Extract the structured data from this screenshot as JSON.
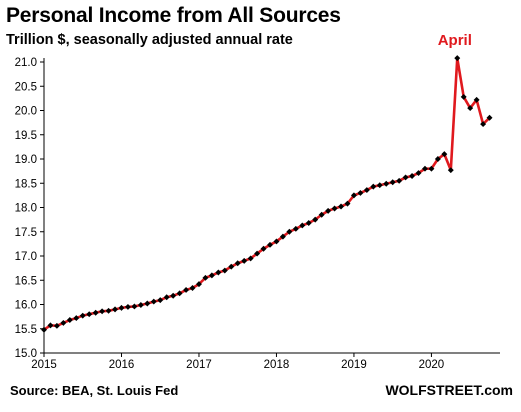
{
  "chart_data": {
    "type": "line",
    "title": "Personal Income from All Sources",
    "subtitle": "Trillion $, seasonally adjusted annual rate",
    "xlabel": "",
    "ylabel": "",
    "ylim": [
      15.0,
      21.0
    ],
    "xlim": [
      "2015-01",
      "2020-11"
    ],
    "grid": false,
    "legend": "none",
    "y_ticks": [
      "15.0",
      "15.5",
      "16.0",
      "16.5",
      "17.0",
      "17.5",
      "18.0",
      "18.5",
      "19.0",
      "19.5",
      "20.0",
      "20.5",
      "21.0"
    ],
    "x_ticks": [
      "2015",
      "2016",
      "2017",
      "2018",
      "2019",
      "2020"
    ],
    "annotations": [
      {
        "text": "April",
        "x": "2020-04",
        "y": 21.08
      }
    ],
    "series": [
      {
        "color": "#e0191e",
        "marker_color": "#000000",
        "x": [
          "2015-01",
          "2015-02",
          "2015-03",
          "2015-04",
          "2015-05",
          "2015-06",
          "2015-07",
          "2015-08",
          "2015-09",
          "2015-10",
          "2015-11",
          "2015-12",
          "2016-01",
          "2016-02",
          "2016-03",
          "2016-04",
          "2016-05",
          "2016-06",
          "2016-07",
          "2016-08",
          "2016-09",
          "2016-10",
          "2016-11",
          "2016-12",
          "2017-01",
          "2017-02",
          "2017-03",
          "2017-04",
          "2017-05",
          "2017-06",
          "2017-07",
          "2017-08",
          "2017-09",
          "2017-10",
          "2017-11",
          "2017-12",
          "2018-01",
          "2018-02",
          "2018-03",
          "2018-04",
          "2018-05",
          "2018-06",
          "2018-07",
          "2018-08",
          "2018-09",
          "2018-10",
          "2018-11",
          "2018-12",
          "2019-01",
          "2019-02",
          "2019-03",
          "2019-04",
          "2019-05",
          "2019-06",
          "2019-07",
          "2019-08",
          "2019-09",
          "2019-10",
          "2019-11",
          "2019-12",
          "2020-01",
          "2020-02",
          "2020-03",
          "2020-04",
          "2020-05",
          "2020-06",
          "2020-07",
          "2020-08",
          "2020-09",
          "2020-10"
        ],
        "values": [
          15.48,
          15.57,
          15.56,
          15.62,
          15.68,
          15.72,
          15.77,
          15.8,
          15.83,
          15.86,
          15.87,
          15.9,
          15.93,
          15.95,
          15.96,
          15.99,
          16.02,
          16.06,
          16.09,
          16.15,
          16.18,
          16.23,
          16.3,
          16.34,
          16.42,
          16.55,
          16.6,
          16.66,
          16.7,
          16.78,
          16.85,
          16.9,
          16.95,
          17.05,
          17.15,
          17.23,
          17.3,
          17.4,
          17.5,
          17.56,
          17.63,
          17.68,
          17.75,
          17.85,
          17.93,
          17.98,
          18.02,
          18.08,
          18.25,
          18.3,
          18.36,
          18.43,
          18.46,
          18.49,
          18.52,
          18.55,
          18.62,
          18.65,
          18.71,
          18.8,
          18.8,
          19.0,
          19.1,
          18.77,
          21.08,
          20.28,
          20.05,
          20.22,
          19.72,
          19.85
        ]
      }
    ]
  },
  "footer": {
    "source": "Source: BEA, St. Louis Fed",
    "brand": "WOLFSTREET.com"
  }
}
